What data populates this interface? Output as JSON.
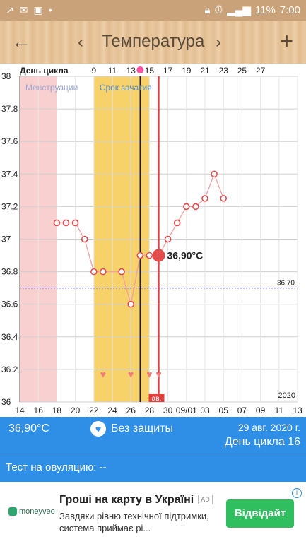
{
  "status_bar": {
    "left_icons": [
      "missed-call-icon",
      "message-icon",
      "image-icon",
      "dot-icon"
    ],
    "battery": "11%",
    "time": "7:00"
  },
  "app_bar": {
    "back_icon": "arrow-left-icon",
    "prev_icon": "chevron-left-icon",
    "title": "Температура",
    "next_icon": "chevron-right-icon",
    "add_icon": "plus-icon"
  },
  "chart_data": {
    "type": "line",
    "top_axis_label": "День цикла",
    "cycle_day_labels": [
      "9",
      "11",
      "13",
      "15",
      "17",
      "19",
      "21",
      "23",
      "25",
      "27"
    ],
    "x_tick_labels": [
      "14",
      "16",
      "18",
      "20",
      "22",
      "24",
      "26",
      "28",
      "30",
      "09/01",
      "03",
      "05",
      "07",
      "09",
      "11",
      "13"
    ],
    "y_tick_labels": [
      "38",
      "37.8",
      "37.6",
      "37.4",
      "37.2",
      "37",
      "36.8",
      "36.6",
      "36.4",
      "36.2",
      "36"
    ],
    "ylim": [
      36,
      38
    ],
    "year_label": "2020",
    "coverline": {
      "value": 36.7,
      "label": "36,70"
    },
    "regions": [
      {
        "label": "Менструации",
        "start": "2020-08-14",
        "end": "2020-08-18",
        "color": "#f9d0d0"
      },
      {
        "label": "Срок зачатия",
        "start": "2020-08-22",
        "end": "2020-08-28",
        "color": "#f7d16a"
      }
    ],
    "series": [
      {
        "values": [
          {
            "x": "2020-08-18",
            "y": 37.1
          },
          {
            "x": "2020-08-19",
            "y": 37.1
          },
          {
            "x": "2020-08-20",
            "y": 37.1
          },
          {
            "x": "2020-08-21",
            "y": 37.0
          },
          {
            "x": "2020-08-22",
            "y": 36.8
          },
          {
            "x": "2020-08-23",
            "y": 36.8
          },
          {
            "x": "2020-08-25",
            "y": 36.8
          },
          {
            "x": "2020-08-26",
            "y": 36.6
          },
          {
            "x": "2020-08-27",
            "y": 36.9
          },
          {
            "x": "2020-08-28",
            "y": 36.9
          },
          {
            "x": "2020-08-29",
            "y": 36.9
          },
          {
            "x": "2020-08-30",
            "y": 37.0
          },
          {
            "x": "2020-08-31",
            "y": 37.1
          },
          {
            "x": "2020-09-01",
            "y": 37.2
          },
          {
            "x": "2020-09-02",
            "y": 37.2
          },
          {
            "x": "2020-09-03",
            "y": 37.25
          },
          {
            "x": "2020-09-04",
            "y": 37.4
          },
          {
            "x": "2020-09-05",
            "y": 37.25
          }
        ]
      }
    ],
    "selected": {
      "x": "2020-08-29",
      "y": 36.9,
      "label": "36,90°C"
    },
    "today_line": "2020-08-27",
    "ovulation_line": "2020-08-29",
    "ovulation_marker_label": "ав.",
    "heart_days": [
      "2020-08-23",
      "2020-08-26",
      "2020-08-28",
      "2020-08-29"
    ],
    "colors": {
      "line": "#f2a0a0",
      "point": "#e34c4c",
      "selected": "#e34c4c",
      "coverline": "#3030c0",
      "today": "#1a1a6a",
      "ovulation": "#e04040",
      "heart": "#f27a7a",
      "grid": "#cfcfcf"
    }
  },
  "info_bar": {
    "temperature": "36,90°C",
    "protection_icon": "heart-icon",
    "protection": "Без защиты",
    "date": "29 авг. 2020 г.",
    "cycle_day": "День цикла 16"
  },
  "ovulation_test": {
    "label": "Тест на овуляцию: --"
  },
  "ad": {
    "logo_text": "moneyveo",
    "headline": "Гроші на карту в Україні",
    "badge": "AD",
    "description": "Завдяки рівню технічної підтримки, система приймає рі...",
    "cta": "Відвідайт",
    "info_icon": "info-icon"
  }
}
